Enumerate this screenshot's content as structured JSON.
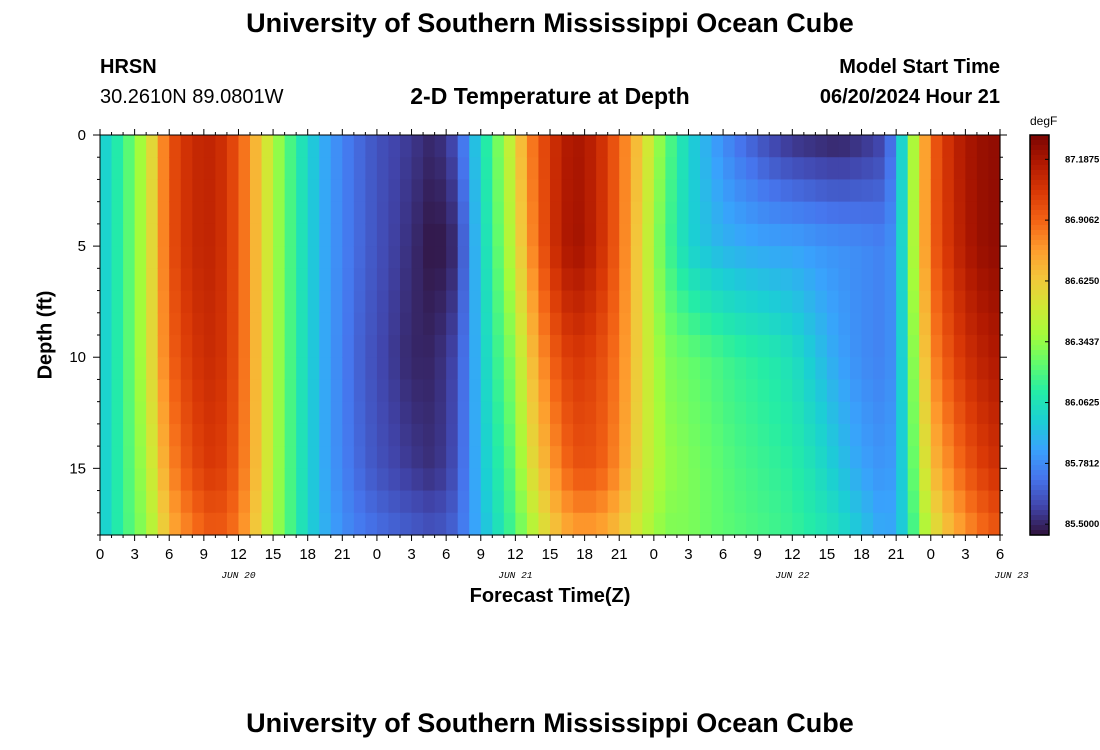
{
  "header": {
    "title": "University of Southern Mississippi Ocean Cube",
    "station": "HRSN",
    "coords": "30.2610N  89.0801W",
    "subtitle": "2-D Temperature at Depth",
    "model_start_label": "Model Start Time",
    "model_start_value": "06/20/2024 Hour 21"
  },
  "footer": {
    "title": "University of Southern Mississippi Ocean Cube"
  },
  "chart_data": {
    "type": "heatmap",
    "title": "2-D Temperature at Depth",
    "xlabel": "Forecast Time(Z)",
    "ylabel": "Depth (ft)",
    "x_ticks": [
      "0",
      "3",
      "6",
      "9",
      "12",
      "15",
      "18",
      "21",
      "0",
      "3",
      "6",
      "9",
      "12",
      "15",
      "18",
      "21",
      "0",
      "3",
      "6",
      "9",
      "12",
      "15",
      "18",
      "21",
      "0",
      "3",
      "6"
    ],
    "date_labels": [
      {
        "label": "JUN 20",
        "hour": 12
      },
      {
        "label": "JUN 21",
        "hour": 36
      },
      {
        "label": "JUN 22",
        "hour": 60
      },
      {
        "label": "JUN 23",
        "hour": 79
      }
    ],
    "xlim": [
      0,
      78
    ],
    "y_ticks": [
      "0",
      "5",
      "10",
      "15"
    ],
    "y_tick_values": [
      0,
      5,
      10,
      15
    ],
    "ylim": [
      0,
      18
    ],
    "colorbar": {
      "unit": "degF",
      "tick_labels": [
        "87.1875",
        "86.9062",
        "86.6250",
        "86.3437",
        "86.0625",
        "85.7812",
        "85.5000"
      ],
      "tick_values": [
        87.1875,
        86.90625,
        86.625,
        86.34375,
        86.0625,
        85.78125,
        85.5
      ],
      "range": [
        85.45,
        87.3
      ],
      "colormap": [
        "#30123b",
        "#4145ab",
        "#4675ed",
        "#39a2fc",
        "#1bcfd4",
        "#24eca6",
        "#61fc6c",
        "#a4fc3b",
        "#d1e834",
        "#f3c63a",
        "#fe9b2d",
        "#f36315",
        "#d93806",
        "#b11901",
        "#7a0402"
      ]
    },
    "series": [
      {
        "name": "Temperature (degF) by forecast hour; each row: [hour, surface 0ft, 5ft, 10ft, 15ft, bottom 18ft]",
        "values": [
          [
            0,
            85.95,
            85.95,
            85.95,
            85.95,
            85.95
          ],
          [
            2,
            86.15,
            86.15,
            86.15,
            86.15,
            86.15
          ],
          [
            4,
            86.45,
            86.45,
            86.45,
            86.4,
            86.35
          ],
          [
            5,
            86.7,
            86.7,
            86.7,
            86.6,
            86.5
          ],
          [
            6,
            86.95,
            86.95,
            86.9,
            86.8,
            86.7
          ],
          [
            8,
            87.1,
            87.1,
            87.05,
            86.98,
            86.85
          ],
          [
            10,
            87.12,
            87.12,
            87.1,
            87.05,
            86.95
          ],
          [
            12,
            86.95,
            86.95,
            86.95,
            86.92,
            86.85
          ],
          [
            14,
            86.6,
            86.6,
            86.6,
            86.6,
            86.55
          ],
          [
            16,
            86.25,
            86.25,
            86.25,
            86.25,
            86.25
          ],
          [
            18,
            86.0,
            86.0,
            86.0,
            86.0,
            86.0
          ],
          [
            20,
            85.82,
            85.82,
            85.82,
            85.82,
            85.85
          ],
          [
            22,
            85.7,
            85.7,
            85.68,
            85.7,
            85.75
          ],
          [
            24,
            85.62,
            85.62,
            85.6,
            85.62,
            85.7
          ],
          [
            27,
            85.55,
            85.52,
            85.5,
            85.55,
            85.65
          ],
          [
            29,
            85.5,
            85.45,
            85.5,
            85.52,
            85.62
          ],
          [
            31,
            85.62,
            85.52,
            85.6,
            85.62,
            85.68
          ],
          [
            32,
            85.85,
            85.8,
            85.8,
            85.8,
            85.8
          ],
          [
            34,
            86.2,
            86.15,
            86.1,
            86.05,
            86.0
          ],
          [
            36,
            86.55,
            86.5,
            86.35,
            86.25,
            86.2
          ],
          [
            37,
            86.8,
            86.75,
            86.6,
            86.5,
            86.35
          ],
          [
            39,
            87.05,
            87.05,
            86.9,
            86.75,
            86.6
          ],
          [
            41,
            87.2,
            87.22,
            87.05,
            86.95,
            86.75
          ],
          [
            43,
            87.12,
            87.12,
            87.0,
            86.95,
            86.75
          ],
          [
            45,
            86.9,
            86.9,
            86.85,
            86.8,
            86.65
          ],
          [
            47,
            86.6,
            86.55,
            86.55,
            86.52,
            86.45
          ],
          [
            49,
            86.25,
            86.2,
            86.3,
            86.35,
            86.3
          ],
          [
            51,
            86.0,
            86.0,
            86.25,
            86.3,
            86.3
          ],
          [
            53,
            85.85,
            85.92,
            86.2,
            86.25,
            86.25
          ],
          [
            55,
            85.72,
            85.88,
            86.15,
            86.2,
            86.22
          ],
          [
            58,
            85.58,
            85.85,
            86.1,
            86.15,
            86.18
          ],
          [
            60,
            85.52,
            85.85,
            86.05,
            86.12,
            86.15
          ],
          [
            62,
            85.5,
            85.82,
            85.95,
            86.05,
            86.1
          ],
          [
            64,
            85.48,
            85.8,
            85.85,
            85.95,
            86.05
          ],
          [
            66,
            85.52,
            85.78,
            85.78,
            85.85,
            85.95
          ],
          [
            68,
            85.58,
            85.75,
            85.75,
            85.8,
            85.85
          ],
          [
            69,
            85.8,
            85.82,
            85.82,
            85.85,
            85.88
          ],
          [
            70,
            86.2,
            86.2,
            86.15,
            86.1,
            86.05
          ],
          [
            71,
            86.6,
            86.6,
            86.5,
            86.4,
            86.3
          ],
          [
            72,
            86.9,
            86.9,
            86.8,
            86.65,
            86.5
          ],
          [
            74,
            87.12,
            87.1,
            87.0,
            86.85,
            86.7
          ],
          [
            76,
            87.22,
            87.22,
            87.12,
            87.0,
            86.85
          ],
          [
            78,
            87.25,
            87.25,
            87.18,
            87.08,
            86.95
          ]
        ]
      }
    ],
    "grid": false,
    "legend": "colorbar right"
  }
}
